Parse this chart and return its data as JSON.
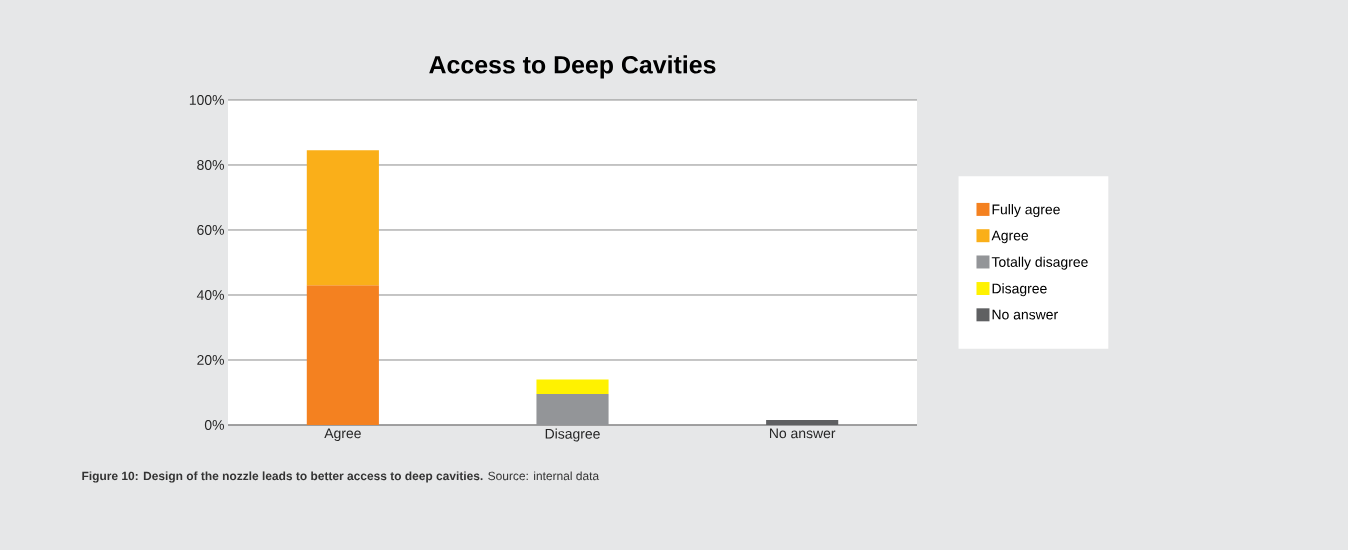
{
  "chart_data": {
    "type": "bar",
    "stacked": true,
    "title": "Access to Deep Cavities",
    "categories": [
      "Agree",
      "Disagree",
      "No answer"
    ],
    "series": [
      {
        "name": "Fully agree",
        "color": "#f48120",
        "values": [
          43,
          null,
          null
        ]
      },
      {
        "name": "Agree",
        "color": "#faaf19",
        "values": [
          41.5,
          null,
          null
        ]
      },
      {
        "name": "Totally disagree",
        "color": "#939598",
        "values": [
          null,
          9.5,
          null
        ]
      },
      {
        "name": "Disagree",
        "color": "#fff200",
        "values": [
          null,
          4.5,
          null
        ]
      },
      {
        "name": "No answer",
        "color": "#5f6062",
        "values": [
          null,
          null,
          1.5
        ]
      }
    ],
    "ylim": [
      0,
      100
    ],
    "yticks": [
      {
        "value": 0,
        "label": "0%"
      },
      {
        "value": 20,
        "label": "20%"
      },
      {
        "value": 40,
        "label": "40%"
      },
      {
        "value": 60,
        "label": "60%"
      },
      {
        "value": 80,
        "label": "80%"
      },
      {
        "value": 100,
        "label": "100%"
      }
    ],
    "grid": "y",
    "legend": "right",
    "annotations": [
      "**Figure 10: Design of the nozzle leads to better access to deep cavities.** Source: internal data"
    ]
  }
}
